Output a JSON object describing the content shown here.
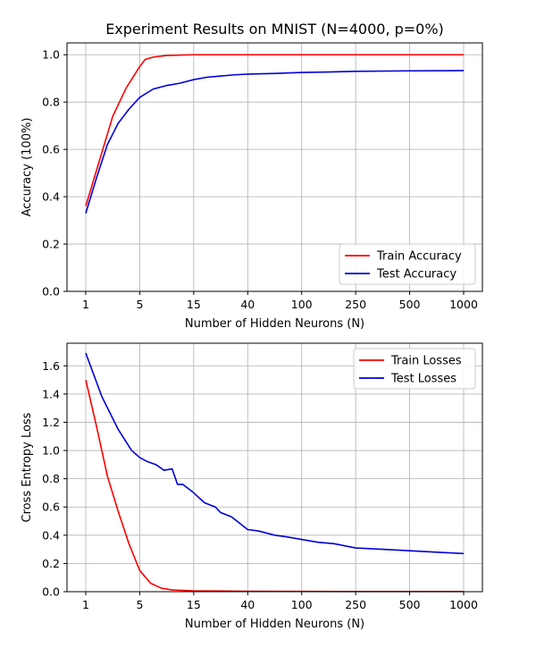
{
  "chart_data": [
    {
      "type": "line",
      "title": "Experiment Results on MNIST (N=4000, p=0%)",
      "xlabel": "Number of Hidden Neurons (N)",
      "ylabel": "Accuracy (100%)",
      "xticks": [
        "1",
        "5",
        "15",
        "40",
        "100",
        "250",
        "500",
        "1000"
      ],
      "yticks": [
        "0.0",
        "0.2",
        "0.4",
        "0.6",
        "0.8",
        "1.0"
      ],
      "ylim": [
        0,
        1.05
      ],
      "grid": true,
      "legend_position": "lower-right",
      "series": [
        {
          "name": "Train Accuracy",
          "color": "#ff0000",
          "points": [
            [
              0,
              0.36
            ],
            [
              0.25,
              0.55
            ],
            [
              0.5,
              0.74
            ],
            [
              0.75,
              0.86
            ],
            [
              1,
              0.95
            ],
            [
              1.1,
              0.98
            ],
            [
              1.25,
              0.99
            ],
            [
              1.5,
              0.997
            ],
            [
              2,
              1.0
            ],
            [
              3,
              1.0
            ],
            [
              4,
              1.0
            ],
            [
              5,
              1.0
            ],
            [
              6,
              1.0
            ],
            [
              7,
              1.0
            ]
          ]
        },
        {
          "name": "Test Accuracy",
          "color": "#0000dd",
          "points": [
            [
              0,
              0.33
            ],
            [
              0.2,
              0.48
            ],
            [
              0.4,
              0.62
            ],
            [
              0.6,
              0.71
            ],
            [
              0.8,
              0.77
            ],
            [
              1,
              0.82
            ],
            [
              1.25,
              0.855
            ],
            [
              1.5,
              0.87
            ],
            [
              1.75,
              0.88
            ],
            [
              2,
              0.895
            ],
            [
              2.25,
              0.905
            ],
            [
              2.5,
              0.91
            ],
            [
              2.75,
              0.915
            ],
            [
              3,
              0.918
            ],
            [
              3.5,
              0.921
            ],
            [
              4,
              0.925
            ],
            [
              4.5,
              0.927
            ],
            [
              5,
              0.93
            ],
            [
              6,
              0.932
            ],
            [
              7,
              0.933
            ]
          ]
        }
      ]
    },
    {
      "type": "line",
      "title": "",
      "xlabel": "Number of Hidden Neurons (N)",
      "ylabel": "Cross Entropy Loss",
      "xticks": [
        "1",
        "5",
        "15",
        "40",
        "100",
        "250",
        "500",
        "1000"
      ],
      "yticks": [
        "0.0",
        "0.2",
        "0.4",
        "0.6",
        "0.8",
        "1.0",
        "1.2",
        "1.4",
        "1.6"
      ],
      "ylim": [
        0,
        1.76
      ],
      "grid": true,
      "legend_position": "upper-right",
      "series": [
        {
          "name": "Train Losses",
          "color": "#ff0000",
          "points": [
            [
              0,
              1.5
            ],
            [
              0.2,
              1.17
            ],
            [
              0.4,
              0.82
            ],
            [
              0.6,
              0.57
            ],
            [
              0.8,
              0.34
            ],
            [
              1,
              0.15
            ],
            [
              1.2,
              0.06
            ],
            [
              1.4,
              0.025
            ],
            [
              1.6,
              0.012
            ],
            [
              2,
              0.006
            ],
            [
              3,
              0.003
            ],
            [
              4,
              0.002
            ],
            [
              5,
              0.001
            ],
            [
              6,
              0.001
            ],
            [
              7,
              0.001
            ]
          ]
        },
        {
          "name": "Test Losses",
          "color": "#0000dd",
          "points": [
            [
              0,
              1.69
            ],
            [
              0.3,
              1.38
            ],
            [
              0.6,
              1.15
            ],
            [
              0.85,
              1.0
            ],
            [
              1,
              0.95
            ],
            [
              1.15,
              0.92
            ],
            [
              1.3,
              0.9
            ],
            [
              1.45,
              0.86
            ],
            [
              1.6,
              0.87
            ],
            [
              1.7,
              0.76
            ],
            [
              1.8,
              0.76
            ],
            [
              2,
              0.7
            ],
            [
              2.2,
              0.63
            ],
            [
              2.4,
              0.6
            ],
            [
              2.5,
              0.56
            ],
            [
              2.7,
              0.53
            ],
            [
              3,
              0.44
            ],
            [
              3.2,
              0.43
            ],
            [
              3.5,
              0.4
            ],
            [
              3.7,
              0.39
            ],
            [
              4,
              0.37
            ],
            [
              4.3,
              0.35
            ],
            [
              4.6,
              0.34
            ],
            [
              5,
              0.31
            ],
            [
              5.5,
              0.3
            ],
            [
              6,
              0.29
            ],
            [
              6.5,
              0.28
            ],
            [
              7,
              0.27
            ]
          ]
        }
      ]
    }
  ]
}
